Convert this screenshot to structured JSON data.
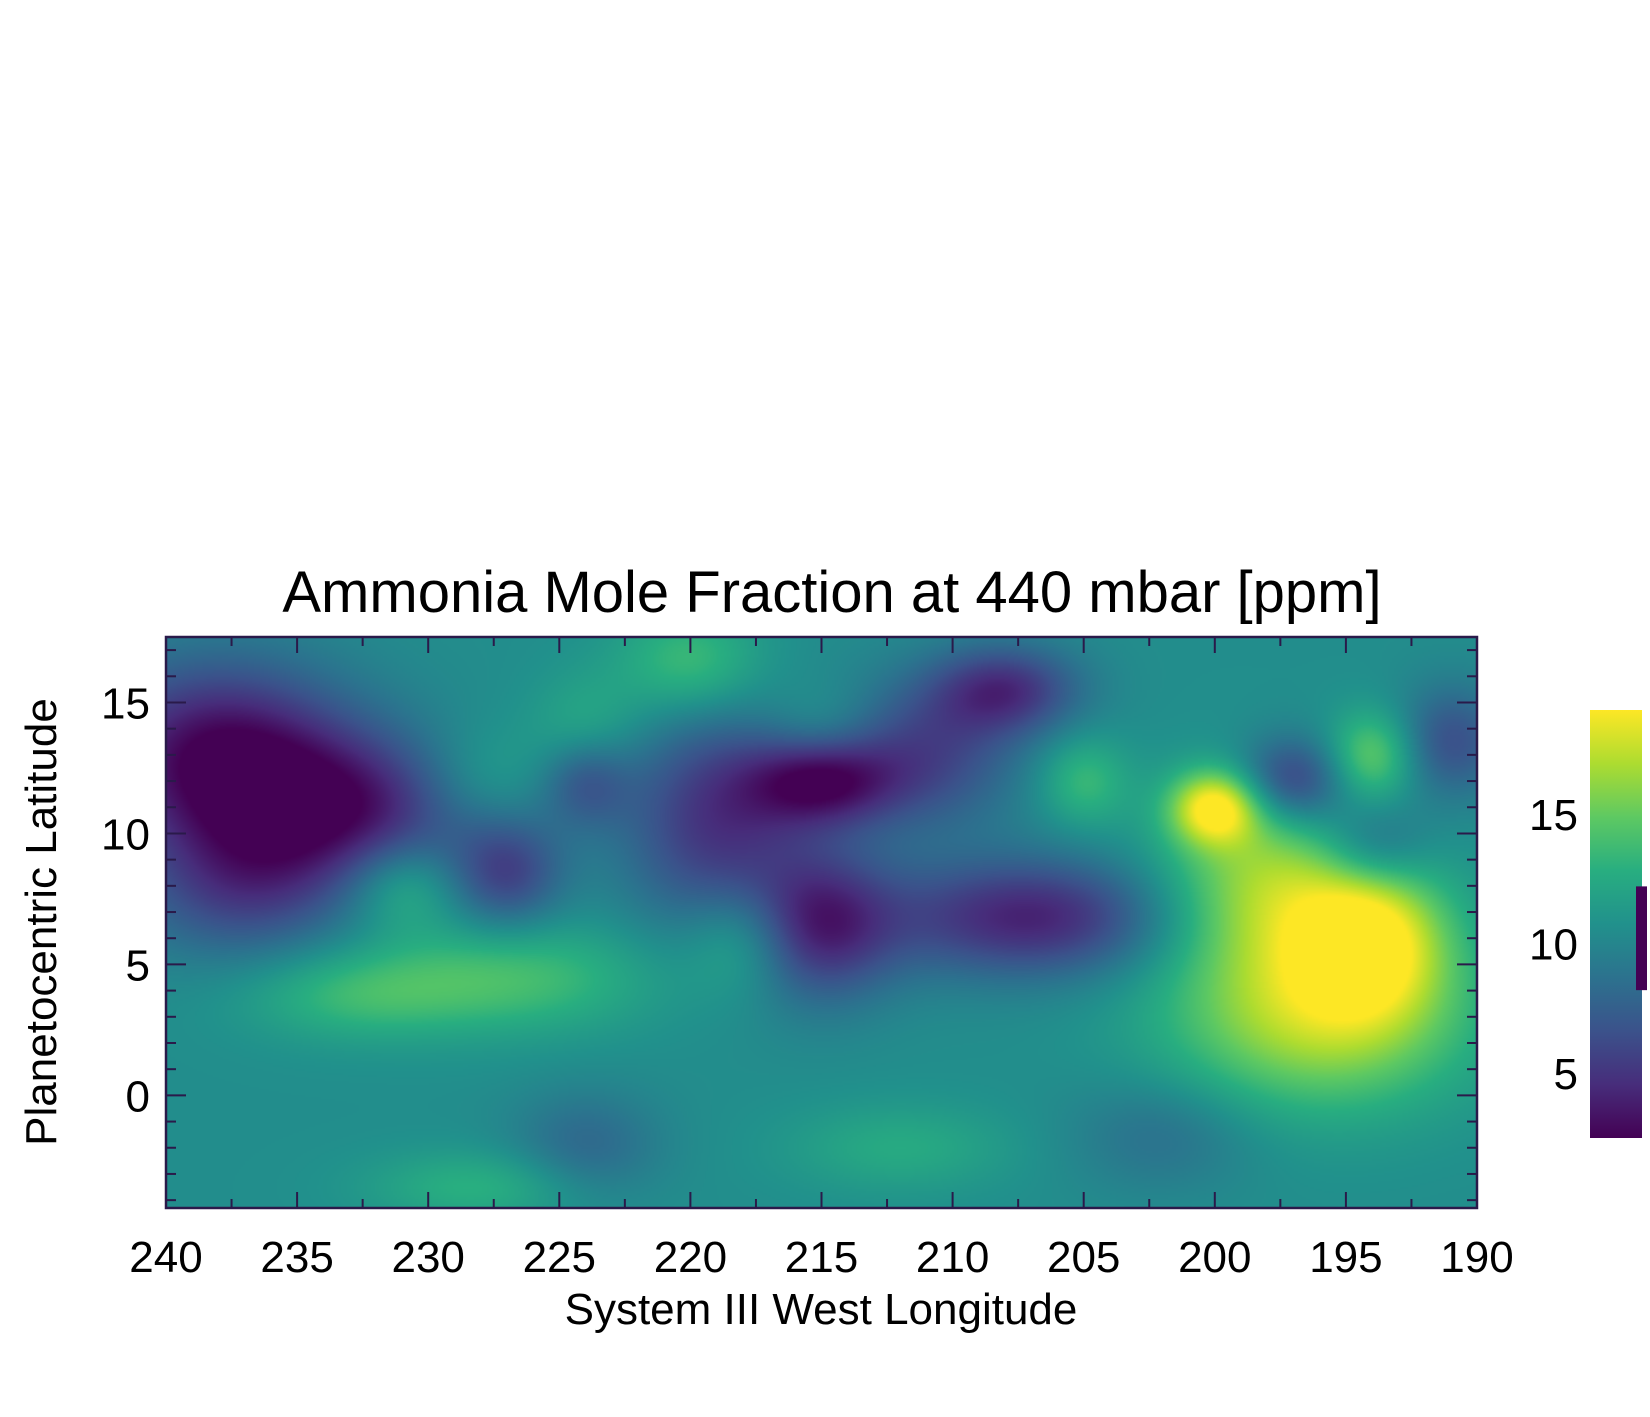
{
  "chart_data": {
    "type": "heatmap",
    "title": "Ammonia Mole Fraction at 440 mbar [ppm]",
    "xlabel": "System III West Longitude",
    "ylabel": "Planetocentric Latitude",
    "xlim": [
      240,
      190
    ],
    "ylim": [
      -4.3,
      17.5
    ],
    "x_ticks": [
      240,
      235,
      230,
      225,
      220,
      215,
      210,
      205,
      200,
      195,
      190
    ],
    "x_tick_labels": [
      "240",
      "235",
      "230",
      "225",
      "220",
      "215",
      "210",
      "205",
      "200",
      "195",
      "190"
    ],
    "y_ticks": [
      15,
      10,
      5,
      0
    ],
    "y_tick_labels": [
      "15",
      "10",
      "5",
      "0"
    ],
    "colorbar": {
      "colormap": "viridis",
      "range": [
        2.5,
        19
      ],
      "ticks": [
        5,
        10,
        15
      ],
      "tick_labels": [
        "5",
        "10",
        "15"
      ],
      "marker_range": [
        8.2,
        12.2
      ],
      "marker_color": "#440154"
    },
    "field": {
      "base_value": 10.5,
      "features": [
        {
          "lon": 238,
          "lat": 13,
          "value": 2.8,
          "sigma_lon": 3.5,
          "sigma_lat": 2.5
        },
        {
          "lon": 233,
          "lat": 11,
          "value": 4.5,
          "sigma_lon": 3.5,
          "sigma_lat": 2
        },
        {
          "lon": 237,
          "lat": 8,
          "value": 6,
          "sigma_lon": 3,
          "sigma_lat": 2
        },
        {
          "lon": 231,
          "lat": 8,
          "value": 13.5,
          "sigma_lon": 1.5,
          "sigma_lat": 1.2
        },
        {
          "lon": 228,
          "lat": 12,
          "value": 12.5,
          "sigma_lon": 1.8,
          "sigma_lat": 1.5
        },
        {
          "lon": 227,
          "lat": 8.5,
          "value": 6,
          "sigma_lon": 1.5,
          "sigma_lat": 1.5
        },
        {
          "lon": 227,
          "lat": 4.5,
          "value": 14,
          "sigma_lon": 4,
          "sigma_lat": 1.5
        },
        {
          "lon": 233,
          "lat": 3.8,
          "value": 13,
          "sigma_lon": 3,
          "sigma_lat": 1.2
        },
        {
          "lon": 224,
          "lat": 14,
          "value": 12.5,
          "sigma_lon": 1.5,
          "sigma_lat": 1.5
        },
        {
          "lon": 224,
          "lat": 12,
          "value": 7,
          "sigma_lon": 1.2,
          "sigma_lat": 1.2
        },
        {
          "lon": 220,
          "lat": 16.5,
          "value": 14,
          "sigma_lon": 2,
          "sigma_lat": 1.5
        },
        {
          "lon": 219,
          "lat": 10.5,
          "value": 5,
          "sigma_lon": 2.5,
          "sigma_lat": 3
        },
        {
          "lon": 218,
          "lat": 6,
          "value": 13.5,
          "sigma_lon": 1.5,
          "sigma_lat": 1.5
        },
        {
          "lon": 215,
          "lat": 12,
          "value": 4,
          "sigma_lon": 2,
          "sigma_lat": 1.2
        },
        {
          "lon": 215,
          "lat": 14,
          "value": 12,
          "sigma_lon": 1.5,
          "sigma_lat": 1.2
        },
        {
          "lon": 215,
          "lat": 6.5,
          "value": 4.5,
          "sigma_lon": 2,
          "sigma_lat": 2
        },
        {
          "lon": 211,
          "lat": 13,
          "value": 6,
          "sigma_lon": 2.5,
          "sigma_lat": 2
        },
        {
          "lon": 207,
          "lat": 6.8,
          "value": 4,
          "sigma_lon": 4,
          "sigma_lat": 1.6
        },
        {
          "lon": 208,
          "lat": 15.5,
          "value": 5,
          "sigma_lon": 2,
          "sigma_lat": 1.2
        },
        {
          "lon": 205,
          "lat": 12,
          "value": 13.5,
          "sigma_lon": 1.2,
          "sigma_lat": 1.2
        },
        {
          "lon": 200,
          "lat": 11,
          "value": 18.5,
          "sigma_lon": 1.2,
          "sigma_lat": 1
        },
        {
          "lon": 198,
          "lat": 8,
          "value": 16.5,
          "sigma_lon": 3,
          "sigma_lat": 2.5
        },
        {
          "lon": 196,
          "lat": 3,
          "value": 17,
          "sigma_lon": 4,
          "sigma_lat": 2.5
        },
        {
          "lon": 194,
          "lat": 6,
          "value": 17.5,
          "sigma_lon": 2,
          "sigma_lat": 2
        },
        {
          "lon": 197,
          "lat": 12,
          "value": 5,
          "sigma_lon": 1.5,
          "sigma_lat": 1.2
        },
        {
          "lon": 194,
          "lat": 13,
          "value": 15,
          "sigma_lon": 1.2,
          "sigma_lat": 1.2
        },
        {
          "lon": 194,
          "lat": 9.5,
          "value": 7,
          "sigma_lon": 1.5,
          "sigma_lat": 1.2
        },
        {
          "lon": 191,
          "lat": 13.5,
          "value": 6.5,
          "sigma_lon": 1.5,
          "sigma_lat": 1.5
        },
        {
          "lon": 202,
          "lat": -1.5,
          "value": 8.5,
          "sigma_lon": 2.5,
          "sigma_lat": 1.5
        },
        {
          "lon": 224,
          "lat": -2,
          "value": 8,
          "sigma_lon": 2,
          "sigma_lat": 1.5
        },
        {
          "lon": 228,
          "lat": -3.5,
          "value": 13,
          "sigma_lon": 3,
          "sigma_lat": 1
        },
        {
          "lon": 212,
          "lat": -2,
          "value": 12.5,
          "sigma_lon": 3,
          "sigma_lat": 1.2
        }
      ]
    }
  }
}
